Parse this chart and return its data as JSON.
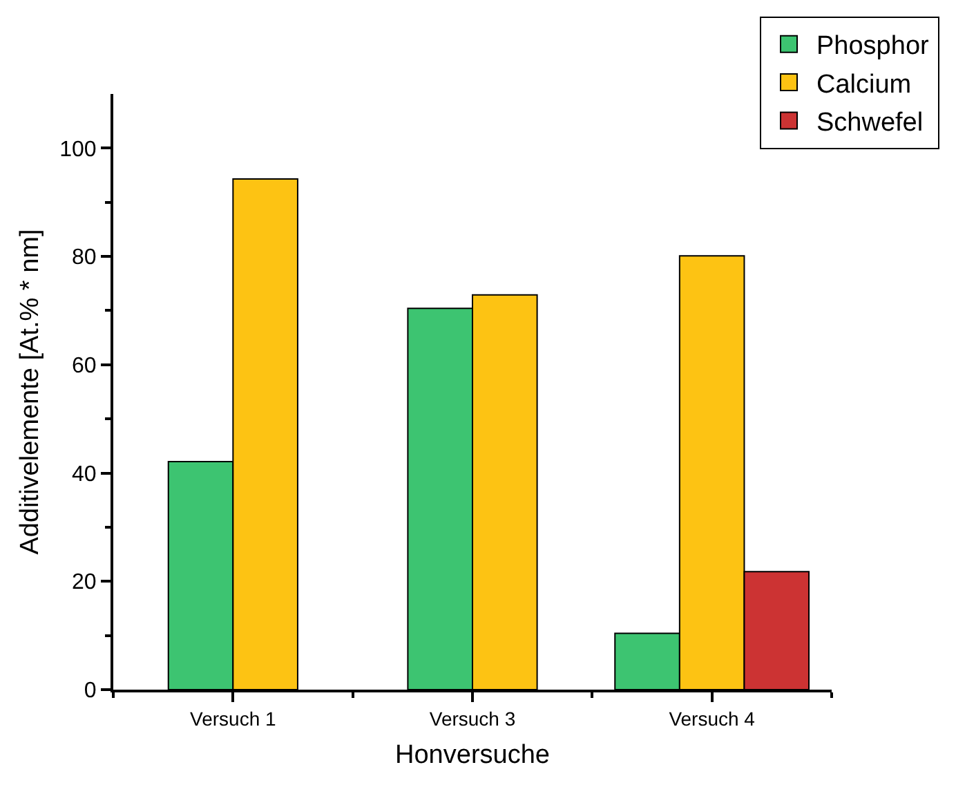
{
  "chart_data": {
    "type": "bar",
    "xlabel": "Honversuche",
    "ylabel": "Additivelemente [At.% * nm]",
    "categories": [
      "Versuch 1",
      "Versuch 3",
      "Versuch 4"
    ],
    "series": [
      {
        "name": "Phosphor",
        "color": "#3dc471",
        "values": [
          42.1,
          70.4,
          10.4
        ]
      },
      {
        "name": "Calcium",
        "color": "#fdc313",
        "values": [
          94.3,
          72.9,
          80.1
        ]
      },
      {
        "name": "Schwefel",
        "color": "#cc3333",
        "values": [
          null,
          null,
          21.8
        ]
      }
    ],
    "ylim": [
      0,
      110
    ],
    "yticks": [
      0,
      20,
      40,
      60,
      80,
      100
    ],
    "grid": false,
    "legend": "top right"
  }
}
